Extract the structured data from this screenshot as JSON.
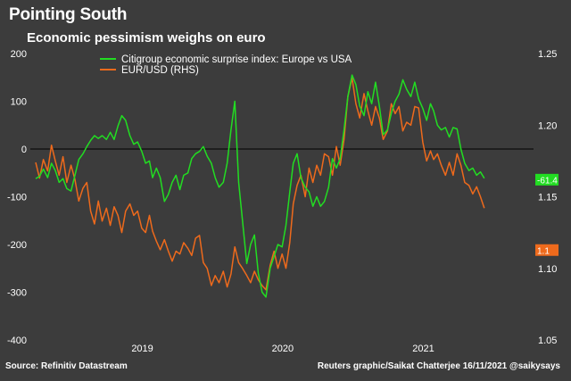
{
  "header": {
    "title": "Pointing South",
    "subtitle": "Economic pessimism weighs on euro"
  },
  "footer": {
    "source": "Source: Refinitiv Datastream",
    "credit": "Reuters graphic/Saikat Chatterjee 16/11/2021 @saikysays"
  },
  "colors": {
    "background": "#3c3c3c",
    "surprise_series": "#22dd22",
    "eurusd_series": "#ee6a1c",
    "zero_line": "#000000"
  },
  "chart_data": {
    "type": "line",
    "x_axis": {
      "type": "date",
      "range": [
        "2018-05-01",
        "2021-11-16"
      ],
      "tick_labels": [
        "2019",
        "2020",
        "2021"
      ],
      "tick_dates": [
        "2019-01-01",
        "2020-01-01",
        "2021-01-01"
      ]
    },
    "y_left": {
      "range": [
        -400,
        200
      ],
      "ticks": [
        200,
        100,
        0,
        -100,
        -200,
        -300,
        -400
      ]
    },
    "y_right": {
      "range": [
        1.05,
        1.25
      ],
      "ticks": [
        1.25,
        1.2,
        1.15,
        1.1,
        1.05
      ],
      "label": "RHS"
    },
    "legend": {
      "position": "top-left"
    },
    "zero_line": true,
    "series": [
      {
        "name": "Citigroup economic surprise index: Europe vs USA",
        "axis": "left",
        "color": "#22dd22",
        "last_value_label": "-61.4",
        "points": [
          [
            "2018-05-01",
            -62
          ],
          [
            "2018-05-11",
            -57
          ],
          [
            "2018-05-21",
            -42
          ],
          [
            "2018-06-01",
            -60
          ],
          [
            "2018-06-11",
            -30
          ],
          [
            "2018-06-21",
            -45
          ],
          [
            "2018-07-01",
            -70
          ],
          [
            "2018-07-11",
            -62
          ],
          [
            "2018-07-21",
            -83
          ],
          [
            "2018-08-01",
            -88
          ],
          [
            "2018-08-11",
            -55
          ],
          [
            "2018-08-21",
            -22
          ],
          [
            "2018-09-01",
            -10
          ],
          [
            "2018-09-11",
            5
          ],
          [
            "2018-09-21",
            18
          ],
          [
            "2018-10-01",
            28
          ],
          [
            "2018-10-11",
            22
          ],
          [
            "2018-10-21",
            28
          ],
          [
            "2018-11-01",
            20
          ],
          [
            "2018-11-11",
            35
          ],
          [
            "2018-11-21",
            20
          ],
          [
            "2018-12-01",
            48
          ],
          [
            "2018-12-11",
            70
          ],
          [
            "2018-12-21",
            60
          ],
          [
            "2019-01-01",
            28
          ],
          [
            "2019-01-11",
            10
          ],
          [
            "2019-01-21",
            15
          ],
          [
            "2019-02-01",
            -5
          ],
          [
            "2019-02-11",
            -30
          ],
          [
            "2019-02-21",
            -25
          ],
          [
            "2019-03-01",
            -60
          ],
          [
            "2019-03-11",
            -40
          ],
          [
            "2019-03-21",
            -60
          ],
          [
            "2019-04-01",
            -110
          ],
          [
            "2019-04-11",
            -95
          ],
          [
            "2019-04-21",
            -70
          ],
          [
            "2019-05-01",
            -55
          ],
          [
            "2019-05-11",
            -85
          ],
          [
            "2019-05-21",
            -55
          ],
          [
            "2019-06-01",
            -50
          ],
          [
            "2019-06-11",
            -20
          ],
          [
            "2019-06-21",
            -10
          ],
          [
            "2019-07-01",
            -5
          ],
          [
            "2019-07-11",
            5
          ],
          [
            "2019-07-21",
            -15
          ],
          [
            "2019-08-01",
            -30
          ],
          [
            "2019-08-11",
            -60
          ],
          [
            "2019-08-21",
            -80
          ],
          [
            "2019-09-01",
            -70
          ],
          [
            "2019-09-11",
            -30
          ],
          [
            "2019-09-21",
            40
          ],
          [
            "2019-10-01",
            100
          ],
          [
            "2019-10-11",
            -70
          ],
          [
            "2019-10-21",
            -150
          ],
          [
            "2019-11-01",
            -240
          ],
          [
            "2019-11-11",
            -200
          ],
          [
            "2019-11-21",
            -180
          ],
          [
            "2019-12-01",
            -260
          ],
          [
            "2019-12-11",
            -300
          ],
          [
            "2019-12-21",
            -310
          ],
          [
            "2020-01-01",
            -250
          ],
          [
            "2020-01-11",
            -225
          ],
          [
            "2020-01-21",
            -200
          ],
          [
            "2020-02-01",
            -205
          ],
          [
            "2020-02-11",
            -160
          ],
          [
            "2020-02-21",
            -90
          ],
          [
            "2020-03-01",
            -30
          ],
          [
            "2020-03-11",
            -10
          ],
          [
            "2020-03-21",
            -60
          ],
          [
            "2020-04-01",
            -80
          ],
          [
            "2020-04-11",
            -90
          ],
          [
            "2020-04-21",
            -120
          ],
          [
            "2020-05-01",
            -100
          ],
          [
            "2020-05-11",
            -120
          ],
          [
            "2020-05-21",
            -110
          ],
          [
            "2020-06-01",
            -80
          ],
          [
            "2020-06-11",
            -20
          ],
          [
            "2020-06-21",
            -40
          ],
          [
            "2020-07-01",
            -20
          ],
          [
            "2020-07-11",
            40
          ],
          [
            "2020-07-21",
            110
          ],
          [
            "2020-08-01",
            155
          ],
          [
            "2020-08-11",
            135
          ],
          [
            "2020-08-21",
            90
          ],
          [
            "2020-09-01",
            70
          ],
          [
            "2020-09-11",
            120
          ],
          [
            "2020-09-21",
            95
          ],
          [
            "2020-10-01",
            140
          ],
          [
            "2020-10-11",
            90
          ],
          [
            "2020-10-21",
            30
          ],
          [
            "2020-11-01",
            40
          ],
          [
            "2020-11-11",
            75
          ],
          [
            "2020-11-21",
            100
          ],
          [
            "2020-12-01",
            115
          ],
          [
            "2020-12-11",
            145
          ],
          [
            "2020-12-21",
            125
          ],
          [
            "2021-01-01",
            110
          ],
          [
            "2021-01-11",
            140
          ],
          [
            "2021-01-21",
            105
          ],
          [
            "2021-02-01",
            85
          ],
          [
            "2021-02-11",
            60
          ],
          [
            "2021-02-21",
            95
          ],
          [
            "2021-03-01",
            80
          ],
          [
            "2021-03-11",
            50
          ],
          [
            "2021-03-21",
            40
          ],
          [
            "2021-04-01",
            45
          ],
          [
            "2021-04-11",
            25
          ],
          [
            "2021-04-21",
            45
          ],
          [
            "2021-05-01",
            42
          ],
          [
            "2021-05-11",
            0
          ],
          [
            "2021-05-21",
            -30
          ],
          [
            "2021-06-01",
            -45
          ],
          [
            "2021-06-11",
            -40
          ],
          [
            "2021-06-21",
            -55
          ],
          [
            "2021-07-01",
            -48
          ],
          [
            "2021-07-11",
            -61.4
          ]
        ]
      },
      {
        "name": "EUR/USD (RHS)",
        "axis": "right",
        "color": "#ee6a1c",
        "last_value_label": "1.1",
        "points": [
          [
            "2018-05-01",
            1.174
          ],
          [
            "2018-05-11",
            1.163
          ],
          [
            "2018-05-21",
            1.176
          ],
          [
            "2018-06-01",
            1.168
          ],
          [
            "2018-06-11",
            1.186
          ],
          [
            "2018-06-21",
            1.175
          ],
          [
            "2018-07-01",
            1.165
          ],
          [
            "2018-07-11",
            1.178
          ],
          [
            "2018-07-21",
            1.16
          ],
          [
            "2018-08-01",
            1.172
          ],
          [
            "2018-08-11",
            1.162
          ],
          [
            "2018-08-21",
            1.147
          ],
          [
            "2018-09-01",
            1.156
          ],
          [
            "2018-09-11",
            1.16
          ],
          [
            "2018-09-21",
            1.14
          ],
          [
            "2018-10-01",
            1.131
          ],
          [
            "2018-10-11",
            1.147
          ],
          [
            "2018-10-21",
            1.133
          ],
          [
            "2018-11-01",
            1.142
          ],
          [
            "2018-11-11",
            1.13
          ],
          [
            "2018-11-21",
            1.143
          ],
          [
            "2018-12-01",
            1.137
          ],
          [
            "2018-12-11",
            1.125
          ],
          [
            "2018-12-21",
            1.14
          ],
          [
            "2019-01-01",
            1.145
          ],
          [
            "2019-01-11",
            1.137
          ],
          [
            "2019-01-21",
            1.14
          ],
          [
            "2019-02-01",
            1.128
          ],
          [
            "2019-02-11",
            1.125
          ],
          [
            "2019-02-21",
            1.137
          ],
          [
            "2019-03-01",
            1.126
          ],
          [
            "2019-03-11",
            1.119
          ],
          [
            "2019-03-21",
            1.113
          ],
          [
            "2019-04-01",
            1.12
          ],
          [
            "2019-04-11",
            1.112
          ],
          [
            "2019-04-21",
            1.105
          ],
          [
            "2019-05-01",
            1.112
          ],
          [
            "2019-05-11",
            1.11
          ],
          [
            "2019-05-21",
            1.118
          ],
          [
            "2019-06-01",
            1.114
          ],
          [
            "2019-06-11",
            1.109
          ],
          [
            "2019-06-21",
            1.121
          ],
          [
            "2019-07-01",
            1.123
          ],
          [
            "2019-07-11",
            1.104
          ],
          [
            "2019-07-21",
            1.1
          ],
          [
            "2019-08-01",
            1.088
          ],
          [
            "2019-08-11",
            1.095
          ],
          [
            "2019-08-21",
            1.09
          ],
          [
            "2019-09-01",
            1.098
          ],
          [
            "2019-09-11",
            1.087
          ],
          [
            "2019-09-21",
            1.096
          ],
          [
            "2019-10-01",
            1.115
          ],
          [
            "2019-10-11",
            1.104
          ],
          [
            "2019-10-21",
            1.1
          ],
          [
            "2019-11-01",
            1.095
          ],
          [
            "2019-11-11",
            1.09
          ],
          [
            "2019-11-21",
            1.098
          ],
          [
            "2019-12-01",
            1.092
          ],
          [
            "2019-12-11",
            1.088
          ],
          [
            "2019-12-21",
            1.085
          ],
          [
            "2020-01-01",
            1.102
          ],
          [
            "2020-01-11",
            1.112
          ],
          [
            "2020-01-21",
            1.1
          ],
          [
            "2020-02-01",
            1.11
          ],
          [
            "2020-02-11",
            1.1
          ],
          [
            "2020-02-21",
            1.118
          ],
          [
            "2020-03-01",
            1.145
          ],
          [
            "2020-03-11",
            1.158
          ],
          [
            "2020-03-21",
            1.165
          ],
          [
            "2020-04-01",
            1.15
          ],
          [
            "2020-04-11",
            1.17
          ],
          [
            "2020-04-21",
            1.16
          ],
          [
            "2020-05-01",
            1.172
          ],
          [
            "2020-05-11",
            1.165
          ],
          [
            "2020-05-21",
            1.18
          ],
          [
            "2020-06-01",
            1.178
          ],
          [
            "2020-06-11",
            1.165
          ],
          [
            "2020-06-21",
            1.185
          ],
          [
            "2020-07-01",
            1.172
          ],
          [
            "2020-07-11",
            1.19
          ],
          [
            "2020-07-21",
            1.22
          ],
          [
            "2020-08-01",
            1.233
          ],
          [
            "2020-08-11",
            1.215
          ],
          [
            "2020-08-21",
            1.205
          ],
          [
            "2020-09-01",
            1.222
          ],
          [
            "2020-09-11",
            1.21
          ],
          [
            "2020-09-21",
            1.2
          ],
          [
            "2020-10-01",
            1.213
          ],
          [
            "2020-10-11",
            1.205
          ],
          [
            "2020-10-21",
            1.19
          ],
          [
            "2020-11-01",
            1.196
          ],
          [
            "2020-11-11",
            1.215
          ],
          [
            "2020-11-21",
            1.208
          ],
          [
            "2020-12-01",
            1.213
          ],
          [
            "2020-12-11",
            1.196
          ],
          [
            "2020-12-21",
            1.202
          ],
          [
            "2021-01-01",
            1.2
          ],
          [
            "2021-01-11",
            1.213
          ],
          [
            "2021-01-21",
            1.212
          ],
          [
            "2021-02-01",
            1.188
          ],
          [
            "2021-02-11",
            1.175
          ],
          [
            "2021-02-21",
            1.182
          ],
          [
            "2021-03-01",
            1.176
          ],
          [
            "2021-03-11",
            1.18
          ],
          [
            "2021-03-21",
            1.172
          ],
          [
            "2021-04-01",
            1.165
          ],
          [
            "2021-04-11",
            1.174
          ],
          [
            "2021-04-21",
            1.165
          ],
          [
            "2021-05-01",
            1.18
          ],
          [
            "2021-05-11",
            1.172
          ],
          [
            "2021-05-21",
            1.16
          ],
          [
            "2021-06-01",
            1.158
          ],
          [
            "2021-06-11",
            1.152
          ],
          [
            "2021-06-21",
            1.157
          ],
          [
            "2021-07-01",
            1.15
          ],
          [
            "2021-07-11",
            1.142
          ]
        ]
      }
    ]
  }
}
